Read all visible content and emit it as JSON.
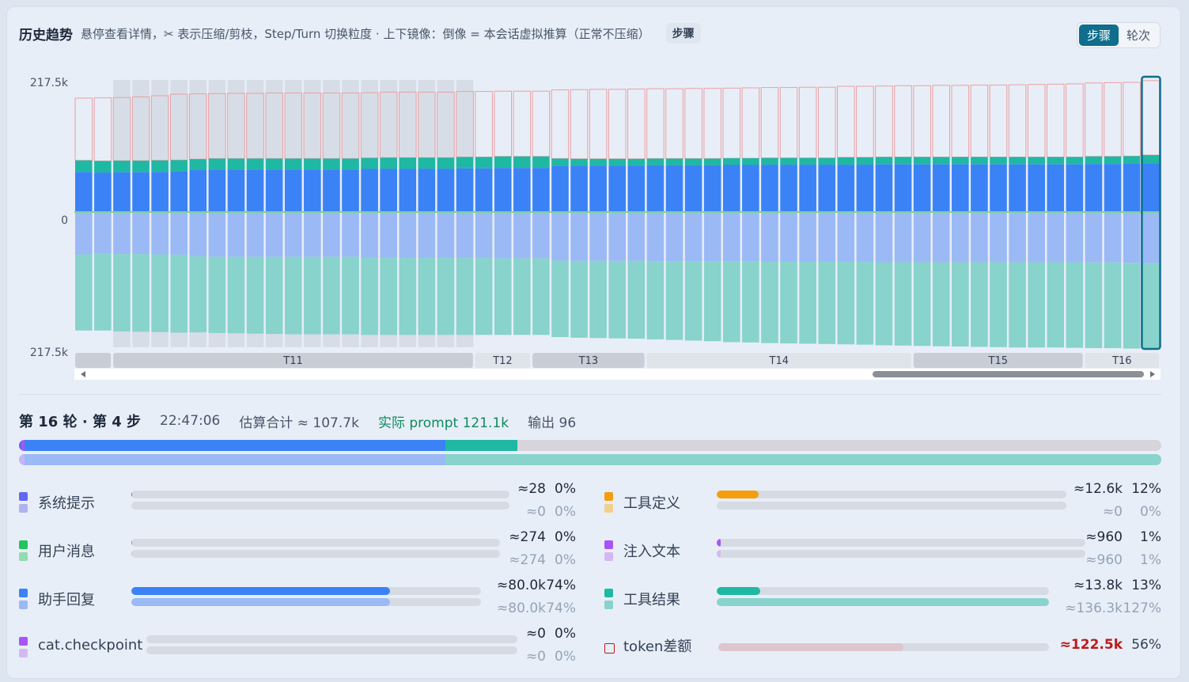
{
  "header": {
    "title": "历史趋势",
    "description": "悬停查看详情，✂ 表示压缩/剪枝，Step/Turn 切换粒度 · 上下镜像：倒像 = 本会话虚拟推算（正常不压缩）",
    "mode_chip": "步骤",
    "toggle": [
      "步骤",
      "轮次"
    ],
    "toggle_active": 0
  },
  "chart_data": {
    "type": "bar",
    "mirrored": true,
    "y_ticks": [
      "217.5k",
      "0",
      "217.5k"
    ],
    "ylim": [
      -217500,
      217500
    ],
    "turn_labels": [
      {
        "label": "T11",
        "start": 2,
        "end": 21
      },
      {
        "label": "T12",
        "start": 21,
        "end": 24
      },
      {
        "label": "T13",
        "start": 24,
        "end": 30
      },
      {
        "label": "T14",
        "start": 30,
        "end": 44
      },
      {
        "label": "T15",
        "start": 44,
        "end": 53
      },
      {
        "label": "T16",
        "start": 53,
        "end": 57
      }
    ],
    "first_label_stub_end": 2,
    "selected_index": 56,
    "shaded_range": [
      2,
      21
    ],
    "colors": {
      "assistant": "#3b82f6",
      "tool_result": "#1fb8a3",
      "outline": "#e8a0a4",
      "assistant_est": "#9bb9f5",
      "tool_result_est": "#88d3cc",
      "shade": "#d7dde6",
      "selected": "#0f6d8d"
    },
    "series": [
      {
        "name": "助手回复",
        "values": [
          66000,
          65000,
          65500,
          65500,
          66000,
          66500,
          69000,
          70000,
          70000,
          70000,
          70000,
          70000,
          70000,
          70000,
          70000,
          71000,
          71000,
          71000,
          71000,
          71000,
          72000,
          72000,
          72500,
          72500,
          72500,
          76000,
          76500,
          76500,
          76500,
          76500,
          77000,
          77000,
          77000,
          77000,
          77500,
          77500,
          78000,
          78000,
          78000,
          78000,
          78000,
          78000,
          78500,
          78500,
          78500,
          78500,
          78500,
          78500,
          78500,
          78500,
          78500,
          78500,
          78500,
          79000,
          79000,
          79500,
          80000
        ]
      },
      {
        "name": "工具结果",
        "values": [
          19000,
          19000,
          19000,
          19000,
          19000,
          19000,
          18000,
          18000,
          18000,
          18000,
          18000,
          18000,
          18000,
          18000,
          18000,
          18000,
          18500,
          18500,
          18500,
          18500,
          18500,
          18500,
          19000,
          19000,
          19000,
          12000,
          11000,
          11000,
          11000,
          11000,
          11000,
          11000,
          11000,
          11000,
          11000,
          11000,
          11000,
          11000,
          11000,
          11000,
          12000,
          12000,
          12000,
          12000,
          12000,
          12000,
          12000,
          12000,
          12000,
          12000,
          12000,
          12000,
          12000,
          12500,
          12500,
          12500,
          13800
        ]
      },
      {
        "name": "token差额",
        "values": [
          102500,
          104000,
          104000,
          105000,
          106500,
          108500,
          107500,
          107000,
          107500,
          107500,
          108000,
          108000,
          108000,
          108000,
          108000,
          107500,
          108000,
          108000,
          108000,
          108000,
          108000,
          108000,
          107500,
          107500,
          107500,
          113000,
          114000,
          114500,
          114500,
          115000,
          115000,
          115000,
          115500,
          115500,
          115500,
          116000,
          116000,
          116000,
          116500,
          116500,
          117000,
          117000,
          117000,
          117500,
          117500,
          118000,
          118000,
          118500,
          118500,
          119000,
          119500,
          120000,
          120500,
          121000,
          121500,
          121500,
          122500
        ]
      },
      {
        "name": "助手回复 (估算)",
        "values": [
          66000,
          65000,
          65500,
          65500,
          66000,
          66500,
          69000,
          70000,
          70000,
          70000,
          70000,
          70000,
          70000,
          70000,
          70000,
          71000,
          71000,
          71000,
          71000,
          71000,
          72000,
          72000,
          72500,
          72500,
          72500,
          76000,
          76500,
          76500,
          76500,
          76500,
          77000,
          77000,
          77000,
          77000,
          77500,
          77500,
          78000,
          78000,
          78000,
          78000,
          78000,
          78000,
          78500,
          78500,
          78500,
          78500,
          78500,
          78500,
          78500,
          78500,
          78500,
          78500,
          78500,
          79000,
          79000,
          79500,
          80000
        ]
      },
      {
        "name": "工具结果 (估算)",
        "values": [
          121000,
          122000,
          123000,
          123500,
          123500,
          124000,
          121000,
          121000,
          121500,
          122000,
          122500,
          123000,
          123000,
          123000,
          123000,
          123000,
          123000,
          123000,
          123000,
          123000,
          122000,
          122000,
          121500,
          121500,
          121500,
          121500,
          122000,
          122500,
          123000,
          123500,
          124000,
          125000,
          126000,
          127000,
          128000,
          128500,
          129000,
          129500,
          130000,
          130500,
          131000,
          131500,
          132000,
          132500,
          133000,
          133500,
          134000,
          134500,
          135000,
          135500,
          135500,
          135500,
          136000,
          136000,
          136000,
          136200,
          136300
        ]
      }
    ]
  },
  "detail": {
    "turn_step": "第 16 轮 · 第 4 步",
    "time": "22:47:06",
    "estimated": "估算合计 ≈ 107.7k",
    "actual": "实际 prompt 121.1k",
    "output": "输出 96"
  },
  "bigbar": {
    "top": [
      {
        "name": "系统提示",
        "frac": 0.002,
        "color": "#6366f1"
      },
      {
        "name": "注入文本",
        "frac": 0.003,
        "color": "#a855f7"
      },
      {
        "name": "助手回复",
        "frac": 0.368,
        "color": "#3b82f6"
      },
      {
        "name": "工具结果",
        "frac": 0.063,
        "color": "#1fb8a3"
      }
    ],
    "bottom": [
      {
        "name": "注入文本",
        "frac": 0.005,
        "color": "#c4b5fd"
      },
      {
        "name": "助手回复",
        "frac": 0.368,
        "color": "#9bb9f5"
      },
      {
        "name": "工具结果",
        "frac": 0.627,
        "color": "#88d3cc"
      }
    ]
  },
  "legend": [
    {
      "label": "系统提示",
      "c1": "#6366f1",
      "c2": "#aeb3f0",
      "fill_top": 0.003,
      "fill_bot": 0,
      "val_top": "≈28",
      "pct_top": "0%",
      "val_bot": "≈0",
      "pct_bot": "0%"
    },
    {
      "label": "用户消息",
      "c1": "#22c55e",
      "c2": "#92dcae",
      "fill_top": 0.003,
      "fill_bot": 0.003,
      "val_top": "≈274",
      "pct_top": "0%",
      "val_bot": "≈274",
      "pct_bot": "0%"
    },
    {
      "label": "助手回复",
      "c1": "#3b82f6",
      "c2": "#9bb9f5",
      "fill_top": 0.74,
      "fill_bot": 0.74,
      "val_top": "≈80.0k",
      "pct_top": "74%",
      "val_bot": "≈80.0k",
      "pct_bot": "74%"
    },
    {
      "label": "cat.checkpoint",
      "c1": "#a855f7",
      "c2": "#d4b8f5",
      "fill_top": 0,
      "fill_bot": 0,
      "val_top": "≈0",
      "pct_top": "0%",
      "val_bot": "≈0",
      "pct_bot": "0%"
    },
    {
      "label": "工具定义",
      "c1": "#f59e0b",
      "c2": "#f1cf8c",
      "fill_top": 0.12,
      "fill_bot": 0,
      "val_top": "≈12.6k",
      "pct_top": "12%",
      "val_bot": "≈0",
      "pct_bot": "0%"
    },
    {
      "label": "注入文本",
      "c1": "#a855f7",
      "c2": "#d4b8f5",
      "fill_top": 0.01,
      "fill_bot": 0.01,
      "val_top": "≈960",
      "pct_top": "1%",
      "val_bot": "≈960",
      "pct_bot": "1%"
    },
    {
      "label": "工具结果",
      "c1": "#1fb8a3",
      "c2": "#88d3cc",
      "fill_top": 0.13,
      "fill_bot": 1.0,
      "val_top": "≈13.8k",
      "pct_top": "13%",
      "val_bot": "≈136.3k",
      "pct_bot": "127%"
    },
    {
      "label": "token差额",
      "c1": "#b91c1c",
      "c2": "",
      "fill_top": 0.56,
      "fill_bot": 0,
      "val_top": "≈122.5k",
      "pct_top": "56%",
      "val_bot": "",
      "pct_bot": ""
    }
  ]
}
